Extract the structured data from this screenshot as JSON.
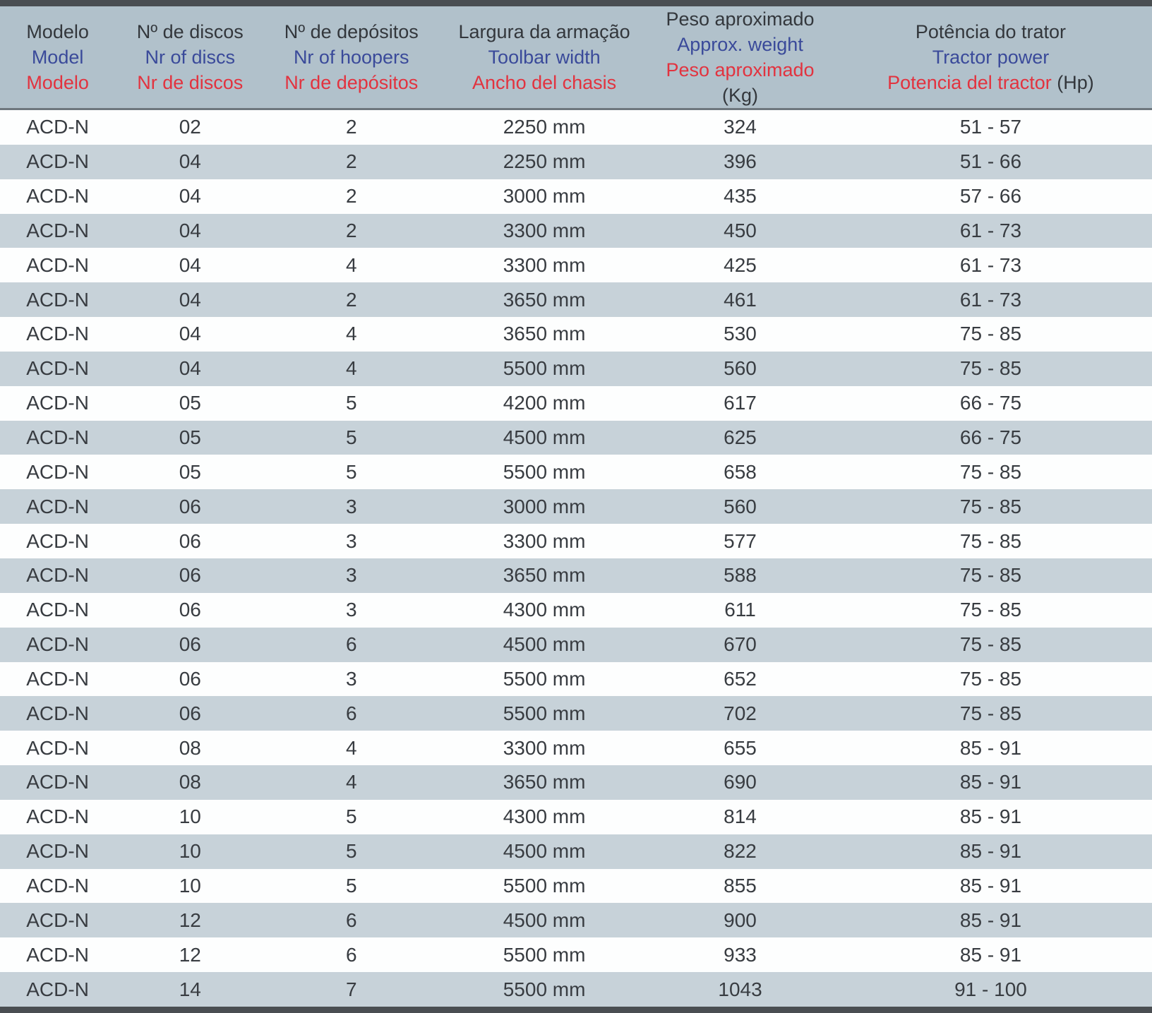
{
  "table": {
    "columns": [
      {
        "pt": "Modelo",
        "en": "Model",
        "es": "Modelo",
        "suffix": ""
      },
      {
        "pt": "Nº de discos",
        "en": "Nr of discs",
        "es": "Nr de discos",
        "suffix": ""
      },
      {
        "pt": "Nº de depósitos",
        "en": "Nr of hoopers",
        "es": "Nr de depósitos",
        "suffix": ""
      },
      {
        "pt": "Largura da armação",
        "en": "Toolbar width",
        "es": "Ancho del chasis",
        "suffix": ""
      },
      {
        "pt": "Peso aproximado",
        "en": "Approx. weight",
        "es": "Peso aproximado",
        "suffix": " (Kg)"
      },
      {
        "pt": "Potência do trator",
        "en": "Tractor power",
        "es": "Potencia del tractor",
        "suffix": " (Hp)"
      }
    ],
    "rows": [
      [
        "ACD-N",
        "02",
        "2",
        "2250 mm",
        "324",
        "51 - 57"
      ],
      [
        "ACD-N",
        "04",
        "2",
        "2250 mm",
        "396",
        "51 - 66"
      ],
      [
        "ACD-N",
        "04",
        "2",
        "3000 mm",
        "435",
        "57 - 66"
      ],
      [
        "ACD-N",
        "04",
        "2",
        "3300 mm",
        "450",
        "61 - 73"
      ],
      [
        "ACD-N",
        "04",
        "4",
        "3300 mm",
        "425",
        "61 - 73"
      ],
      [
        "ACD-N",
        "04",
        "2",
        "3650 mm",
        "461",
        "61 - 73"
      ],
      [
        "ACD-N",
        "04",
        "4",
        "3650 mm",
        "530",
        "75 - 85"
      ],
      [
        "ACD-N",
        "04",
        "4",
        "5500 mm",
        "560",
        "75 - 85"
      ],
      [
        "ACD-N",
        "05",
        "5",
        "4200 mm",
        "617",
        "66 - 75"
      ],
      [
        "ACD-N",
        "05",
        "5",
        "4500 mm",
        "625",
        "66 - 75"
      ],
      [
        "ACD-N",
        "05",
        "5",
        "5500 mm",
        "658",
        "75 - 85"
      ],
      [
        "ACD-N",
        "06",
        "3",
        "3000 mm",
        "560",
        "75 - 85"
      ],
      [
        "ACD-N",
        "06",
        "3",
        "3300 mm",
        "577",
        "75 - 85"
      ],
      [
        "ACD-N",
        "06",
        "3",
        "3650 mm",
        "588",
        "75 - 85"
      ],
      [
        "ACD-N",
        "06",
        "3",
        "4300 mm",
        "611",
        "75 - 85"
      ],
      [
        "ACD-N",
        "06",
        "6",
        "4500 mm",
        "670",
        "75 - 85"
      ],
      [
        "ACD-N",
        "06",
        "3",
        "5500 mm",
        "652",
        "75 - 85"
      ],
      [
        "ACD-N",
        "06",
        "6",
        "5500 mm",
        "702",
        "75 - 85"
      ],
      [
        "ACD-N",
        "08",
        "4",
        "3300 mm",
        "655",
        "85 - 91"
      ],
      [
        "ACD-N",
        "08",
        "4",
        "3650 mm",
        "690",
        "85 - 91"
      ],
      [
        "ACD-N",
        "10",
        "5",
        "4300 mm",
        "814",
        "85 - 91"
      ],
      [
        "ACD-N",
        "10",
        "5",
        "4500 mm",
        "822",
        "85 - 91"
      ],
      [
        "ACD-N",
        "10",
        "5",
        "5500 mm",
        "855",
        "85 - 91"
      ],
      [
        "ACD-N",
        "12",
        "6",
        "4500 mm",
        "900",
        "85 - 91"
      ],
      [
        "ACD-N",
        "12",
        "6",
        "5500 mm",
        "933",
        "85 - 91"
      ],
      [
        "ACD-N",
        "14",
        "7",
        "5500 mm",
        "1043",
        "91 - 100"
      ]
    ]
  },
  "colors": {
    "header_background": "#b1c1cb",
    "stripe_background": "#c7d2d9",
    "row_background": "#fdfefe",
    "text_dark": "#383c41",
    "text_english_blue": "#3a4a9a",
    "text_spanish_red": "#e2333f",
    "border_dark": "#4a4e52"
  }
}
